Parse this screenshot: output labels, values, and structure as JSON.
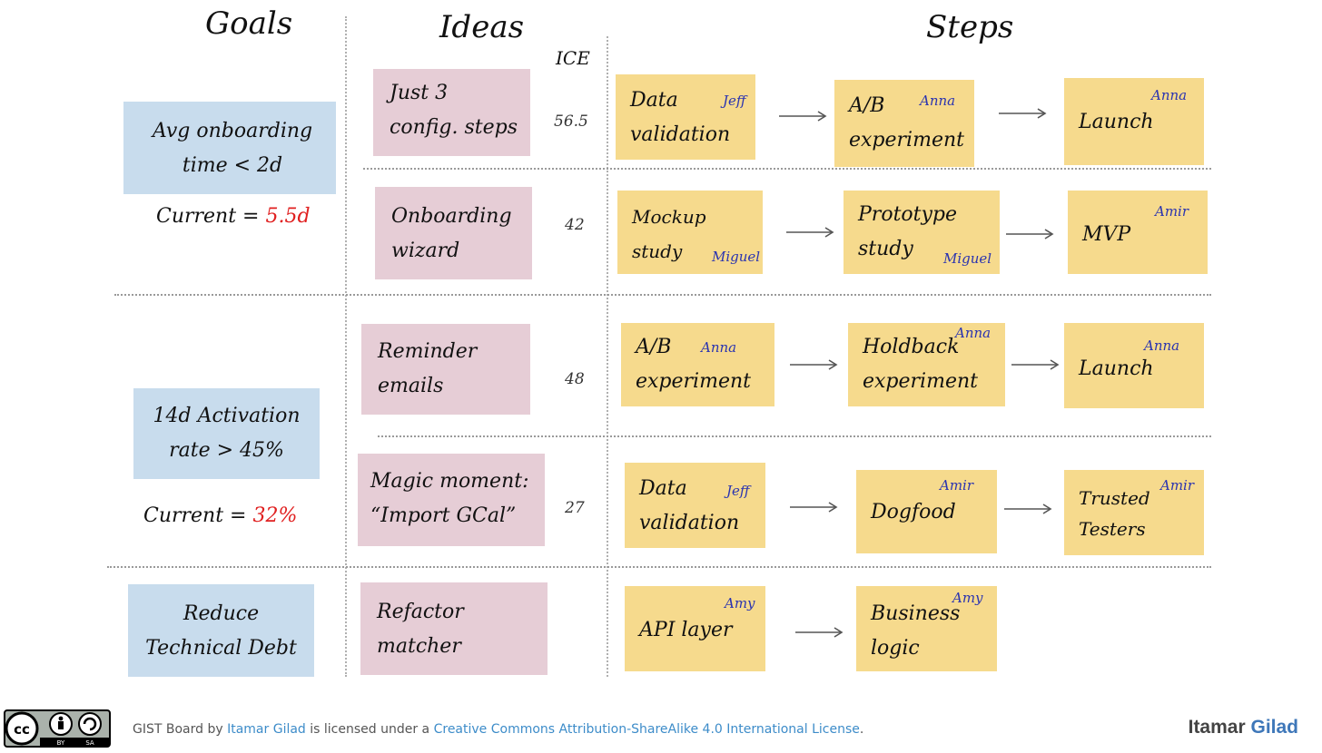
{
  "headers": {
    "goals": "Goals",
    "ideas": "Ideas",
    "ice": "ICE",
    "steps": "Steps"
  },
  "rows": [
    {
      "goal": {
        "text": "Avg onboarding\ntime < 2d",
        "current_label": "Current = ",
        "current_value": "5.5d"
      },
      "ideas": [
        {
          "text": "Just 3\nconfig. steps",
          "ice": "56.5",
          "steps": [
            {
              "text": "Data\nvalidation",
              "owner": "Jeff"
            },
            {
              "text": "A/B\nexperiment",
              "owner": "Anna"
            },
            {
              "text": "Launch",
              "owner": "Anna"
            }
          ]
        },
        {
          "text": "Onboarding\nwizard",
          "ice": "42",
          "steps": [
            {
              "text": "Mockup\nstudy",
              "owner": "Miguel"
            },
            {
              "text": "Prototype\nstudy",
              "owner": "Miguel"
            },
            {
              "text": "MVP",
              "owner": "Amir"
            }
          ]
        }
      ]
    },
    {
      "goal": {
        "text": "14d Activation\nrate > 45%",
        "current_label": "Current = ",
        "current_value": "32%"
      },
      "ideas": [
        {
          "text": "Reminder\nemails",
          "ice": "48",
          "steps": [
            {
              "text": "A/B\nexperiment",
              "owner": "Anna"
            },
            {
              "text": "Holdback\nexperiment",
              "owner": "Anna"
            },
            {
              "text": "Launch",
              "owner": "Anna"
            }
          ]
        },
        {
          "text": "Magic moment:\n“Import GCal”",
          "ice": "27",
          "steps": [
            {
              "text": "Data\nvalidation",
              "owner": "Jeff"
            },
            {
              "text": "Dogfood",
              "owner": "Amir"
            },
            {
              "text": "Trusted\nTesters",
              "owner": "Amir"
            }
          ]
        }
      ]
    },
    {
      "goal": {
        "text": "Reduce\nTechnical Debt"
      },
      "ideas": [
        {
          "text": "Refactor\nmatcher",
          "steps": [
            {
              "text": "API layer",
              "owner": "Amy"
            },
            {
              "text": "Business\nlogic",
              "owner": "Amy"
            }
          ]
        }
      ]
    }
  ],
  "footer": {
    "prefix": "GIST Board by ",
    "author_link": "Itamar Gilad",
    "middle": " is licensed under a ",
    "license_link": "Creative Commons Attribution-ShareAlike 4.0 International License",
    "suffix": "."
  },
  "brand": {
    "first": "Itamar",
    "last": "Gilad"
  },
  "license_badge": {
    "cc": "cc",
    "by": "BY",
    "sa": "SA"
  },
  "colors": {
    "goal": "#c8dced",
    "idea": "#e6cdd6",
    "step": "#f6da8d",
    "owner": "#2b34b0",
    "current_value": "#e02020",
    "link": "#3d8cc9"
  }
}
